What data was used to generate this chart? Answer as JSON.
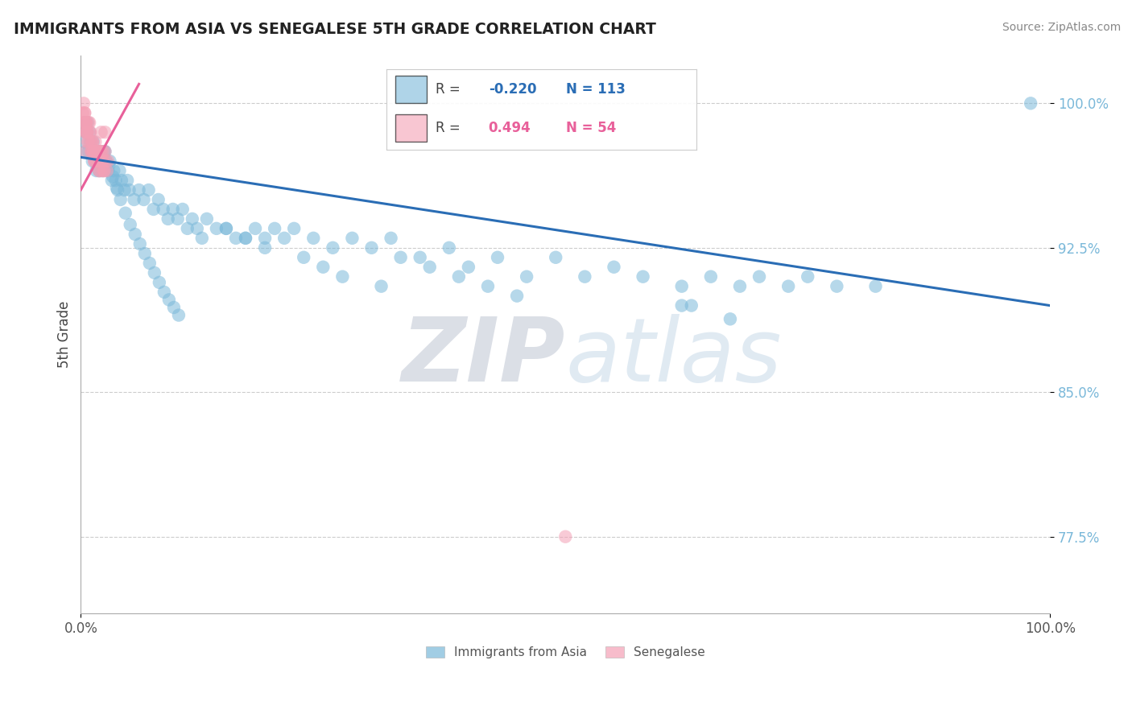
{
  "title": "IMMIGRANTS FROM ASIA VS SENEGALESE 5TH GRADE CORRELATION CHART",
  "source_text": "Source: ZipAtlas.com",
  "ylabel": "5th Grade",
  "xlim": [
    0.0,
    1.0
  ],
  "ylim": [
    0.735,
    1.025
  ],
  "yticks": [
    0.775,
    0.85,
    0.925,
    1.0
  ],
  "ytick_labels": [
    "77.5%",
    "85.0%",
    "92.5%",
    "100.0%"
  ],
  "xtick_labels": [
    "0.0%",
    "100.0%"
  ],
  "blue_R": -0.22,
  "blue_N": 113,
  "pink_R": 0.494,
  "pink_N": 54,
  "blue_color": "#7ab8d9",
  "pink_color": "#f4a0b5",
  "blue_line_color": "#2a6db5",
  "pink_line_color": "#e8609a",
  "legend_label_blue": "Immigrants from Asia",
  "legend_label_pink": "Senegalese",
  "blue_line_y0": 0.972,
  "blue_line_y1": 0.895,
  "blue_x": [
    0.003,
    0.004,
    0.005,
    0.006,
    0.007,
    0.008,
    0.009,
    0.01,
    0.011,
    0.012,
    0.013,
    0.014,
    0.015,
    0.016,
    0.017,
    0.018,
    0.019,
    0.02,
    0.021,
    0.022,
    0.024,
    0.026,
    0.028,
    0.03,
    0.032,
    0.034,
    0.036,
    0.038,
    0.04,
    0.042,
    0.045,
    0.048,
    0.05,
    0.055,
    0.06,
    0.065,
    0.07,
    0.075,
    0.08,
    0.085,
    0.09,
    0.095,
    0.1,
    0.105,
    0.11,
    0.115,
    0.12,
    0.125,
    0.13,
    0.14,
    0.15,
    0.16,
    0.17,
    0.18,
    0.19,
    0.2,
    0.21,
    0.22,
    0.24,
    0.26,
    0.28,
    0.3,
    0.32,
    0.35,
    0.38,
    0.4,
    0.43,
    0.46,
    0.49,
    0.52,
    0.55,
    0.58,
    0.62,
    0.65,
    0.68,
    0.7,
    0.73,
    0.75,
    0.78,
    0.82,
    0.025,
    0.029,
    0.033,
    0.037,
    0.041,
    0.046,
    0.051,
    0.056,
    0.061,
    0.066,
    0.071,
    0.076,
    0.081,
    0.086,
    0.091,
    0.096,
    0.101,
    0.15,
    0.17,
    0.19,
    0.23,
    0.25,
    0.27,
    0.31,
    0.33,
    0.36,
    0.39,
    0.42,
    0.45,
    0.62,
    0.63,
    0.67,
    0.98
  ],
  "blue_y": [
    0.98,
    0.99,
    0.975,
    0.985,
    0.99,
    0.975,
    0.985,
    0.98,
    0.975,
    0.97,
    0.98,
    0.975,
    0.97,
    0.965,
    0.975,
    0.97,
    0.965,
    0.975,
    0.97,
    0.965,
    0.975,
    0.97,
    0.965,
    0.97,
    0.96,
    0.965,
    0.96,
    0.955,
    0.965,
    0.96,
    0.955,
    0.96,
    0.955,
    0.95,
    0.955,
    0.95,
    0.955,
    0.945,
    0.95,
    0.945,
    0.94,
    0.945,
    0.94,
    0.945,
    0.935,
    0.94,
    0.935,
    0.93,
    0.94,
    0.935,
    0.935,
    0.93,
    0.93,
    0.935,
    0.93,
    0.935,
    0.93,
    0.935,
    0.93,
    0.925,
    0.93,
    0.925,
    0.93,
    0.92,
    0.925,
    0.915,
    0.92,
    0.91,
    0.92,
    0.91,
    0.915,
    0.91,
    0.905,
    0.91,
    0.905,
    0.91,
    0.905,
    0.91,
    0.905,
    0.905,
    0.975,
    0.968,
    0.962,
    0.956,
    0.95,
    0.943,
    0.937,
    0.932,
    0.927,
    0.922,
    0.917,
    0.912,
    0.907,
    0.902,
    0.898,
    0.894,
    0.89,
    0.935,
    0.93,
    0.925,
    0.92,
    0.915,
    0.91,
    0.905,
    0.92,
    0.915,
    0.91,
    0.905,
    0.9,
    0.895,
    0.895,
    0.888,
    1.0
  ],
  "pink_x": [
    0.002,
    0.003,
    0.004,
    0.005,
    0.006,
    0.007,
    0.008,
    0.009,
    0.01,
    0.011,
    0.012,
    0.013,
    0.014,
    0.015,
    0.016,
    0.017,
    0.018,
    0.019,
    0.02,
    0.021,
    0.022,
    0.023,
    0.024,
    0.025,
    0.004,
    0.005,
    0.006,
    0.007,
    0.008,
    0.009,
    0.01,
    0.011,
    0.012,
    0.013,
    0.014,
    0.015,
    0.016,
    0.017,
    0.018,
    0.019,
    0.02,
    0.021,
    0.022,
    0.023,
    0.024,
    0.025,
    0.026,
    0.027,
    0.028,
    0.003,
    0.004,
    0.005,
    0.006,
    0.5
  ],
  "pink_y": [
    0.995,
    0.99,
    0.985,
    0.975,
    0.99,
    0.985,
    0.98,
    0.99,
    0.985,
    0.975,
    0.98,
    0.975,
    0.97,
    0.975,
    0.97,
    0.975,
    0.97,
    0.965,
    0.975,
    0.985,
    0.97,
    0.975,
    0.965,
    0.985,
    0.995,
    0.99,
    0.985,
    0.98,
    0.99,
    0.985,
    0.98,
    0.975,
    0.98,
    0.975,
    0.97,
    0.98,
    0.975,
    0.97,
    0.975,
    0.965,
    0.97,
    0.975,
    0.965,
    0.97,
    0.965,
    0.975,
    0.97,
    0.965,
    0.97,
    1.0,
    0.995,
    0.99,
    0.985,
    0.775
  ]
}
